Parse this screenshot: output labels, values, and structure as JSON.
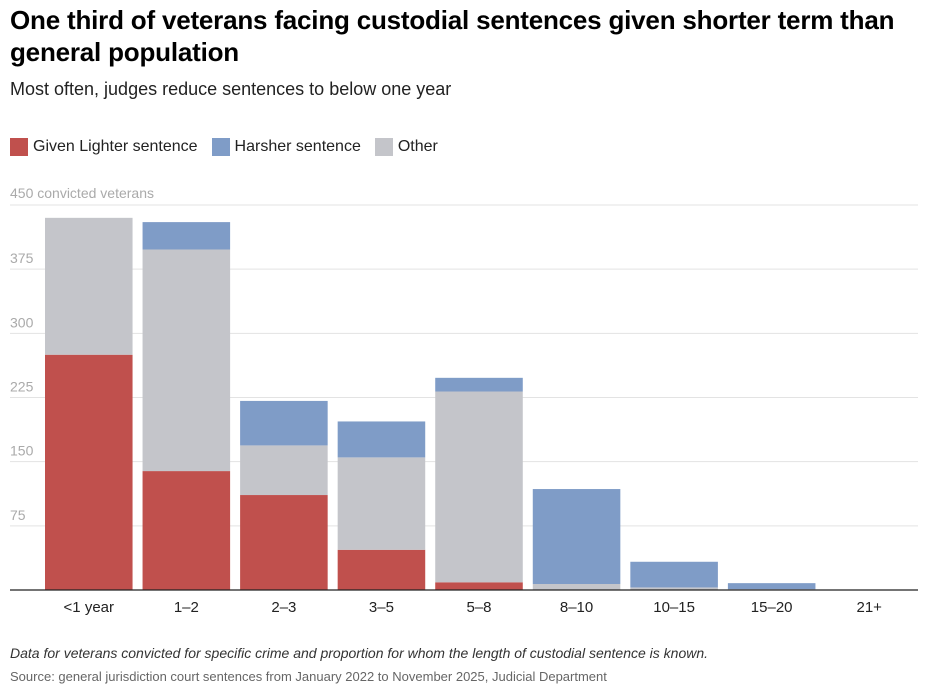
{
  "header": {
    "title": "One third of veterans facing custodial sentences given shorter term than general population",
    "subtitle": "Most often, judges reduce sentences to below one year"
  },
  "legend": {
    "items": [
      {
        "label": "Given Lighter sentence",
        "color": "#c0504d"
      },
      {
        "label": "Harsher sentence",
        "color": "#7f9cc7"
      },
      {
        "label": "Other",
        "color": "#c4c5ca"
      }
    ]
  },
  "chart_data": {
    "type": "bar",
    "stacked": true,
    "categories": [
      "<1 year",
      "1–2",
      "2–3",
      "3–5",
      "5–8",
      "8–10",
      "10–15",
      "15–20",
      "21+"
    ],
    "series": [
      {
        "name": "Given Lighter sentence",
        "color": "#c0504d",
        "values": [
          275,
          139,
          111,
          47,
          9,
          0,
          0,
          0,
          0
        ]
      },
      {
        "name": "Other",
        "color": "#c4c5ca",
        "values": [
          160,
          259,
          58,
          108,
          223,
          7,
          3,
          1,
          0
        ]
      },
      {
        "name": "Harsher sentence",
        "color": "#7f9cc7",
        "values": [
          0,
          32,
          52,
          42,
          16,
          111,
          30,
          7,
          0
        ]
      }
    ],
    "yticks": [
      75,
      150,
      225,
      300,
      375
    ],
    "ytop_label": "450 convicted veterans",
    "ylim": [
      0,
      450
    ],
    "xlabel": "",
    "ylabel": "convicted veterans",
    "grid": true,
    "legend_position": "top-left"
  },
  "footer": {
    "note": "Data for veterans convicted for specific crime and proportion for whom the length of custodial sentence is known.",
    "source": "Source: general jurisdiction court sentences from January 2022 to November 2025, Judicial Department"
  }
}
